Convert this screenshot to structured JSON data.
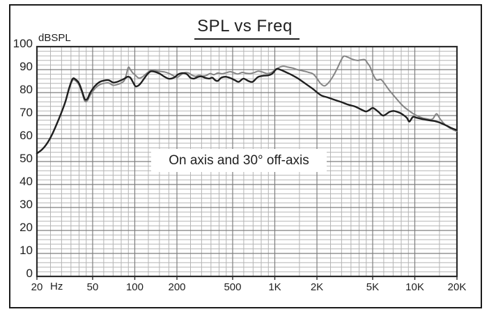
{
  "chart_data": {
    "type": "line",
    "title": "SPL vs Freq",
    "ylabel": "dBSPL",
    "x_unit": "Hz",
    "xscale": "log",
    "xlim": [
      20,
      20000
    ],
    "ylim": [
      0,
      100
    ],
    "grid": "on",
    "legend": "none",
    "annotation": "On axis and 30° off-axis",
    "x_ticks": [
      {
        "value": 20,
        "label": "20"
      },
      {
        "value": 50,
        "label": "50"
      },
      {
        "value": 100,
        "label": "100"
      },
      {
        "value": 200,
        "label": "200"
      },
      {
        "value": 500,
        "label": "500"
      },
      {
        "value": 1000,
        "label": "1K"
      },
      {
        "value": 2000,
        "label": "2K"
      },
      {
        "value": 5000,
        "label": "5K"
      },
      {
        "value": 10000,
        "label": "10K"
      },
      {
        "value": 20000,
        "label": "20K"
      }
    ],
    "y_ticks": [
      {
        "value": 0,
        "label": "0"
      },
      {
        "value": 10,
        "label": "10"
      },
      {
        "value": 20,
        "label": "20"
      },
      {
        "value": 30,
        "label": "30"
      },
      {
        "value": 40,
        "label": "40"
      },
      {
        "value": 50,
        "label": "50"
      },
      {
        "value": 60,
        "label": "60"
      },
      {
        "value": 70,
        "label": "70"
      },
      {
        "value": 80,
        "label": "80"
      },
      {
        "value": 90,
        "label": "90"
      },
      {
        "value": 100,
        "label": "100"
      }
    ],
    "grid_spec": {
      "y_minor_step": 2,
      "x_minor_lines": [
        25,
        30,
        35,
        40,
        45,
        60,
        70,
        80,
        90,
        125,
        150,
        175,
        250,
        300,
        350,
        400,
        450,
        600,
        700,
        800,
        900,
        1500,
        2500,
        3000,
        3500,
        4000,
        4500,
        6000,
        7000,
        8000,
        9000,
        15000
      ]
    },
    "colors": {
      "grid_minor": "#b4b4b4",
      "grid_major": "#7e7e7e",
      "axis_border": "#2b2b2b",
      "text": "#1f1f1f",
      "background": "#ffffff"
    },
    "series": [
      {
        "name": "gray-trace",
        "color": "#858585",
        "stroke_width": 2.0,
        "points": [
          [
            20,
            53.5
          ],
          [
            22,
            55.5
          ],
          [
            24,
            58.5
          ],
          [
            26,
            62.5
          ],
          [
            28,
            67
          ],
          [
            30,
            71.5
          ],
          [
            32,
            76
          ],
          [
            34,
            81.5
          ],
          [
            36,
            85.4
          ],
          [
            38,
            85
          ],
          [
            40,
            83.2
          ],
          [
            42,
            79.8
          ],
          [
            44,
            76.3
          ],
          [
            46,
            76.6
          ],
          [
            48,
            78.8
          ],
          [
            52,
            81.8
          ],
          [
            56,
            83.4
          ],
          [
            60,
            84
          ],
          [
            65,
            84.2
          ],
          [
            70,
            83.2
          ],
          [
            75,
            83.5
          ],
          [
            80,
            84.2
          ],
          [
            84,
            85.2
          ],
          [
            87,
            87.8
          ],
          [
            90,
            91
          ],
          [
            93,
            90
          ],
          [
            97,
            88.5
          ],
          [
            102,
            87.3
          ],
          [
            107,
            86.3
          ],
          [
            113,
            86.8
          ],
          [
            121,
            88.3
          ],
          [
            130,
            89.6
          ],
          [
            140,
            89.5
          ],
          [
            152,
            89.2
          ],
          [
            163,
            89
          ],
          [
            175,
            88.4
          ],
          [
            188,
            87.4
          ],
          [
            200,
            86.6
          ],
          [
            213,
            87.7
          ],
          [
            228,
            88.7
          ],
          [
            243,
            88.5
          ],
          [
            258,
            87.5
          ],
          [
            272,
            87.1
          ],
          [
            288,
            87.5
          ],
          [
            306,
            87.2
          ],
          [
            325,
            87.5
          ],
          [
            345,
            88.3
          ],
          [
            367,
            87.8
          ],
          [
            392,
            88.5
          ],
          [
            420,
            88.2
          ],
          [
            452,
            88.7
          ],
          [
            482,
            89.1
          ],
          [
            512,
            88.6
          ],
          [
            545,
            88.1
          ],
          [
            585,
            88.8
          ],
          [
            625,
            88.4
          ],
          [
            668,
            88.3
          ],
          [
            712,
            88.7
          ],
          [
            762,
            89.3
          ],
          [
            820,
            88.9
          ],
          [
            878,
            88.3
          ],
          [
            935,
            88.6
          ],
          [
            1000,
            89.7
          ],
          [
            1070,
            90.9
          ],
          [
            1150,
            91.5
          ],
          [
            1240,
            91.1
          ],
          [
            1340,
            90.7
          ],
          [
            1450,
            90
          ],
          [
            1600,
            89.4
          ],
          [
            1750,
            88.8
          ],
          [
            1880,
            88.1
          ],
          [
            2000,
            86.2
          ],
          [
            2120,
            84
          ],
          [
            2260,
            82.9
          ],
          [
            2420,
            84.3
          ],
          [
            2600,
            87
          ],
          [
            2790,
            90.5
          ],
          [
            2950,
            93.6
          ],
          [
            3100,
            95.8
          ],
          [
            3300,
            95.5
          ],
          [
            3550,
            94.6
          ],
          [
            3880,
            94
          ],
          [
            4100,
            94.2
          ],
          [
            4400,
            94.3
          ],
          [
            4600,
            92.8
          ],
          [
            4780,
            91.3
          ],
          [
            5030,
            88
          ],
          [
            5330,
            85.5
          ],
          [
            5700,
            85.7
          ],
          [
            5980,
            84.5
          ],
          [
            6500,
            81.4
          ],
          [
            7000,
            79
          ],
          [
            7400,
            77.3
          ],
          [
            7900,
            75.3
          ],
          [
            8400,
            73.7
          ],
          [
            9000,
            72.3
          ],
          [
            9650,
            71
          ],
          [
            10400,
            69.9
          ],
          [
            11300,
            69
          ],
          [
            12200,
            68.6
          ],
          [
            12900,
            68.3
          ],
          [
            13500,
            68.7
          ],
          [
            14300,
            70.8
          ],
          [
            15100,
            68.7
          ],
          [
            16000,
            66.8
          ],
          [
            17000,
            65.4
          ],
          [
            18000,
            64.4
          ],
          [
            19000,
            63.7
          ],
          [
            19900,
            63.2
          ]
        ]
      },
      {
        "name": "black-trace",
        "color": "#1f1f1f",
        "stroke_width": 2.4,
        "points": [
          [
            20,
            53.5
          ],
          [
            22,
            55.5
          ],
          [
            24,
            58.5
          ],
          [
            26,
            62.5
          ],
          [
            28,
            67
          ],
          [
            30,
            71.5
          ],
          [
            32,
            76.2
          ],
          [
            34,
            82
          ],
          [
            36,
            86
          ],
          [
            38,
            85.6
          ],
          [
            40,
            84
          ],
          [
            42,
            80.6
          ],
          [
            44,
            77.1
          ],
          [
            46,
            77.4
          ],
          [
            48,
            79.9
          ],
          [
            52,
            82.9
          ],
          [
            56,
            84.6
          ],
          [
            60,
            85.2
          ],
          [
            65,
            85.4
          ],
          [
            70,
            84.4
          ],
          [
            75,
            84.7
          ],
          [
            80,
            85.4
          ],
          [
            85,
            86.2
          ],
          [
            89,
            86.9
          ],
          [
            93,
            86.5
          ],
          [
            97,
            84.6
          ],
          [
            101,
            82.8
          ],
          [
            105,
            82.9
          ],
          [
            110,
            84
          ],
          [
            116,
            85.9
          ],
          [
            123,
            88
          ],
          [
            130,
            89.2
          ],
          [
            140,
            89
          ],
          [
            151,
            88.2
          ],
          [
            163,
            86.9
          ],
          [
            176,
            86
          ],
          [
            190,
            86.5
          ],
          [
            205,
            88
          ],
          [
            220,
            88.5
          ],
          [
            236,
            88
          ],
          [
            250,
            86.4
          ],
          [
            265,
            86.1
          ],
          [
            282,
            86.8
          ],
          [
            300,
            87
          ],
          [
            320,
            86.4
          ],
          [
            340,
            86.1
          ],
          [
            358,
            86.5
          ],
          [
            375,
            85.4
          ],
          [
            392,
            85.1
          ],
          [
            415,
            86.5
          ],
          [
            445,
            86.9
          ],
          [
            478,
            86.4
          ],
          [
            515,
            85.5
          ],
          [
            552,
            84.7
          ],
          [
            597,
            86.1
          ],
          [
            645,
            85.1
          ],
          [
            695,
            84.7
          ],
          [
            755,
            86.7
          ],
          [
            818,
            87.3
          ],
          [
            890,
            87.5
          ],
          [
            958,
            88.2
          ],
          [
            1030,
            90.3
          ],
          [
            1100,
            89.9
          ],
          [
            1200,
            88.9
          ],
          [
            1330,
            87.6
          ],
          [
            1460,
            86.2
          ],
          [
            1560,
            85
          ],
          [
            1700,
            83.4
          ],
          [
            1890,
            81.4
          ],
          [
            2130,
            78.9
          ],
          [
            2380,
            77.9
          ],
          [
            2660,
            76.9
          ],
          [
            2980,
            75.9
          ],
          [
            3330,
            74.8
          ],
          [
            3750,
            73.9
          ],
          [
            4150,
            72.6
          ],
          [
            4480,
            71.8
          ],
          [
            4750,
            72.5
          ],
          [
            5030,
            73.3
          ],
          [
            5500,
            71.6
          ],
          [
            5950,
            70
          ],
          [
            6600,
            71.6
          ],
          [
            7100,
            72
          ],
          [
            7800,
            71.2
          ],
          [
            8350,
            70.1
          ],
          [
            8800,
            68.9
          ],
          [
            9150,
            67.4
          ],
          [
            9700,
            69.4
          ],
          [
            10400,
            69
          ],
          [
            11500,
            68.4
          ],
          [
            12800,
            67.9
          ],
          [
            13900,
            67.6
          ],
          [
            15000,
            67
          ],
          [
            15800,
            66.4
          ],
          [
            17000,
            65.5
          ],
          [
            18200,
            64.6
          ],
          [
            19900,
            63.7
          ]
        ]
      }
    ]
  }
}
